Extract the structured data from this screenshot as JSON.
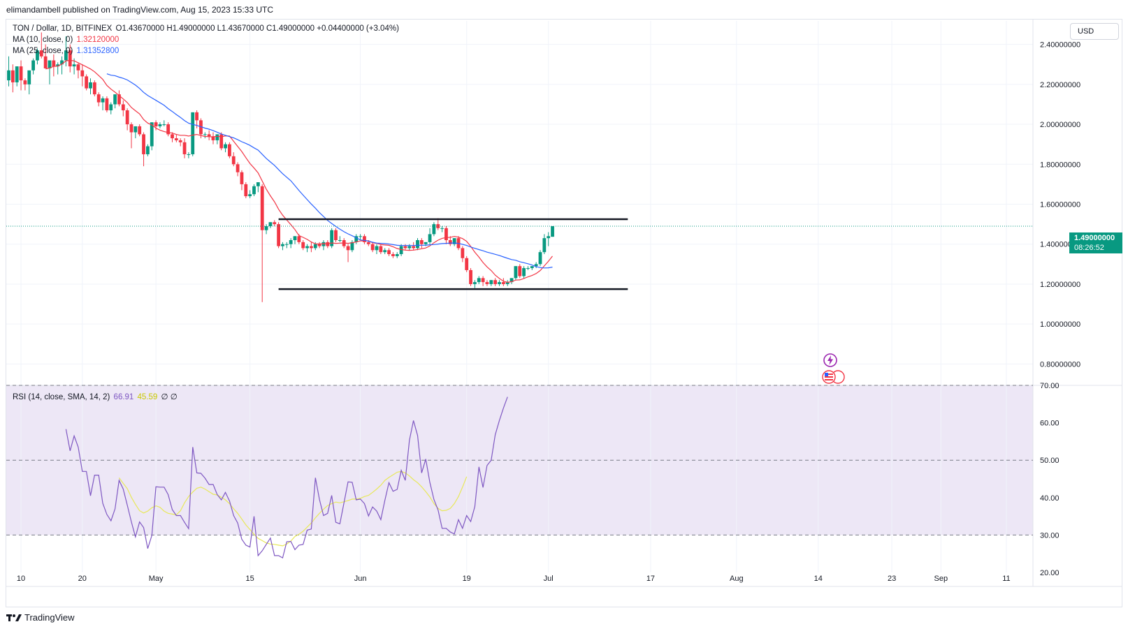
{
  "header": {
    "published": "elimandambell published on TradingView.com, Aug 15, 2023 15:33 UTC"
  },
  "legend": {
    "symbol": "TON / Dollar, 1D, BITFINEX",
    "ohlc": "O1.43670000  H1.49000000  L1.43670000  C1.49000000  +0.04400000 (+3.04%)",
    "ma10_label": "MA (10, close, 0)",
    "ma10_value": "1.32120000",
    "ma25_label": "MA (25, close, 0)",
    "ma25_value": "1.31352800",
    "rsi_label": "RSI (14, close, SMA, 14, 2)",
    "rsi_value": "66.91",
    "rsi_sma_value": "45.59",
    "rsi_extra": "∅  ∅"
  },
  "toolbar": {
    "currency": "USD"
  },
  "price_tag": {
    "price": "1.49000000",
    "countdown": "08:26:52"
  },
  "footer": {
    "brand": "TradingView"
  },
  "icons": [
    "tradingview-logo-icon",
    "lightning-icon",
    "us-flag-icon"
  ],
  "colors": {
    "up": "#089981",
    "down": "#f23645",
    "ma10": "#f23645",
    "ma25": "#2962ff",
    "rsi": "#7e57c2",
    "rsi_sma": "#e8e85a",
    "rsi_band": "#ede7f6"
  },
  "chart_data": [
    {
      "type": "candlestick",
      "symbol": "TON / Dollar",
      "timeframe": "1D",
      "ylim": [
        0.7,
        2.5
      ],
      "y_ticks": [
        "2.40000000",
        "2.20000000",
        "2.00000000",
        "1.80000000",
        "1.60000000",
        "1.40000000",
        "1.20000000",
        "1.00000000",
        "0.80000000"
      ],
      "x_ticks": [
        "10",
        "20",
        "May",
        "15",
        "Jun",
        "19",
        "Jul",
        "17",
        "Aug",
        "14",
        "23",
        "Sep",
        "11"
      ],
      "ohlc": [
        [
          2.22,
          2.34,
          2.19,
          2.27
        ],
        [
          2.27,
          2.3,
          2.16,
          2.21
        ],
        [
          2.21,
          2.29,
          2.19,
          2.29
        ],
        [
          2.29,
          2.32,
          2.17,
          2.22
        ],
        [
          2.22,
          2.23,
          2.17,
          2.2
        ],
        [
          2.2,
          2.26,
          2.15,
          2.27
        ],
        [
          2.27,
          2.33,
          2.25,
          2.32
        ],
        [
          2.32,
          2.38,
          2.3,
          2.37
        ],
        [
          2.37,
          2.46,
          2.33,
          2.34
        ],
        [
          2.34,
          2.4,
          2.29,
          2.28
        ],
        [
          2.28,
          2.31,
          2.2,
          2.32
        ],
        [
          2.32,
          2.35,
          2.24,
          2.29
        ],
        [
          2.29,
          2.31,
          2.25,
          2.3
        ],
        [
          2.3,
          2.34,
          2.25,
          2.32
        ],
        [
          2.32,
          2.44,
          2.29,
          2.37
        ],
        [
          2.37,
          2.4,
          2.26,
          2.29
        ],
        [
          2.29,
          2.33,
          2.25,
          2.3
        ],
        [
          2.3,
          2.31,
          2.23,
          2.27
        ],
        [
          2.27,
          2.3,
          2.19,
          2.24
        ],
        [
          2.24,
          2.25,
          2.17,
          2.18
        ],
        [
          2.18,
          2.23,
          2.15,
          2.21
        ],
        [
          2.21,
          2.22,
          2.14,
          2.15
        ],
        [
          2.15,
          2.16,
          2.09,
          2.11
        ],
        [
          2.11,
          2.14,
          2.07,
          2.13
        ],
        [
          2.13,
          2.14,
          2.06,
          2.07
        ],
        [
          2.07,
          2.11,
          2.05,
          2.1
        ],
        [
          2.1,
          2.15,
          2.08,
          2.15
        ],
        [
          2.15,
          2.17,
          2.09,
          2.1
        ],
        [
          2.1,
          2.12,
          2.04,
          2.07
        ],
        [
          2.07,
          2.08,
          1.97,
          2.0
        ],
        [
          2.0,
          2.01,
          1.88,
          1.96
        ],
        [
          1.96,
          1.99,
          1.93,
          1.99
        ],
        [
          1.99,
          2.0,
          1.94,
          1.95
        ],
        [
          1.95,
          1.96,
          1.79,
          1.85
        ],
        [
          1.85,
          1.9,
          1.84,
          1.89
        ],
        [
          1.89,
          2.01,
          1.87,
          2.01
        ],
        [
          2.01,
          2.02,
          1.97,
          1.99
        ],
        [
          1.99,
          2.01,
          1.98,
          2.0
        ],
        [
          2.0,
          2.02,
          1.99,
          2.0
        ],
        [
          2.0,
          2.01,
          1.94,
          1.95
        ],
        [
          1.95,
          1.96,
          1.91,
          1.93
        ],
        [
          1.93,
          1.95,
          1.91,
          1.92
        ],
        [
          1.92,
          1.93,
          1.89,
          1.91
        ],
        [
          1.91,
          1.93,
          1.83,
          1.85
        ],
        [
          1.85,
          1.86,
          1.83,
          1.85
        ],
        [
          1.85,
          2.06,
          1.84,
          2.06
        ],
        [
          2.06,
          2.07,
          1.98,
          2.02
        ],
        [
          2.02,
          2.03,
          1.93,
          1.95
        ],
        [
          1.95,
          1.96,
          1.93,
          1.95
        ],
        [
          1.95,
          1.97,
          1.92,
          1.94
        ],
        [
          1.94,
          1.96,
          1.9,
          1.92
        ],
        [
          1.92,
          1.95,
          1.9,
          1.95
        ],
        [
          1.95,
          1.96,
          1.87,
          1.88
        ],
        [
          1.88,
          1.91,
          1.86,
          1.9
        ],
        [
          1.9,
          1.91,
          1.83,
          1.84
        ],
        [
          1.84,
          1.86,
          1.79,
          1.8
        ],
        [
          1.8,
          1.81,
          1.74,
          1.76
        ],
        [
          1.76,
          1.77,
          1.67,
          1.7
        ],
        [
          1.7,
          1.71,
          1.63,
          1.64
        ],
        [
          1.64,
          1.67,
          1.63,
          1.65
        ],
        [
          1.65,
          1.7,
          1.64,
          1.69
        ],
        [
          1.69,
          1.71,
          1.66,
          1.71
        ],
        [
          1.69,
          1.7,
          1.11,
          1.47
        ],
        [
          1.47,
          1.5,
          1.45,
          1.49
        ],
        [
          1.49,
          1.51,
          1.48,
          1.51
        ],
        [
          1.51,
          1.52,
          1.49,
          1.5
        ],
        [
          1.5,
          1.51,
          1.38,
          1.39
        ],
        [
          1.39,
          1.41,
          1.37,
          1.4
        ],
        [
          1.4,
          1.41,
          1.38,
          1.4
        ],
        [
          1.4,
          1.43,
          1.38,
          1.42
        ],
        [
          1.42,
          1.44,
          1.4,
          1.44
        ],
        [
          1.44,
          1.45,
          1.4,
          1.41
        ],
        [
          1.41,
          1.42,
          1.37,
          1.38
        ],
        [
          1.38,
          1.4,
          1.36,
          1.39
        ],
        [
          1.39,
          1.41,
          1.36,
          1.38
        ],
        [
          1.38,
          1.41,
          1.37,
          1.4
        ],
        [
          1.4,
          1.41,
          1.38,
          1.39
        ],
        [
          1.39,
          1.42,
          1.37,
          1.41
        ],
        [
          1.41,
          1.42,
          1.38,
          1.39
        ],
        [
          1.39,
          1.48,
          1.38,
          1.47
        ],
        [
          1.47,
          1.48,
          1.41,
          1.42
        ],
        [
          1.42,
          1.44,
          1.41,
          1.42
        ],
        [
          1.42,
          1.43,
          1.38,
          1.39
        ],
        [
          1.39,
          1.4,
          1.31,
          1.37
        ],
        [
          1.37,
          1.42,
          1.36,
          1.41
        ],
        [
          1.41,
          1.45,
          1.4,
          1.44
        ],
        [
          1.44,
          1.45,
          1.42,
          1.44
        ],
        [
          1.44,
          1.45,
          1.4,
          1.41
        ],
        [
          1.41,
          1.42,
          1.39,
          1.4
        ],
        [
          1.4,
          1.41,
          1.36,
          1.37
        ],
        [
          1.37,
          1.4,
          1.35,
          1.39
        ],
        [
          1.39,
          1.4,
          1.35,
          1.36
        ],
        [
          1.36,
          1.38,
          1.35,
          1.37
        ],
        [
          1.37,
          1.38,
          1.34,
          1.35
        ],
        [
          1.35,
          1.36,
          1.33,
          1.34
        ],
        [
          1.34,
          1.36,
          1.33,
          1.35
        ],
        [
          1.35,
          1.4,
          1.34,
          1.39
        ],
        [
          1.39,
          1.4,
          1.37,
          1.38
        ],
        [
          1.38,
          1.4,
          1.37,
          1.39
        ],
        [
          1.39,
          1.41,
          1.37,
          1.38
        ],
        [
          1.38,
          1.43,
          1.37,
          1.42
        ],
        [
          1.42,
          1.43,
          1.38,
          1.4
        ],
        [
          1.4,
          1.41,
          1.39,
          1.41
        ],
        [
          1.41,
          1.48,
          1.4,
          1.45
        ],
        [
          1.45,
          1.51,
          1.44,
          1.5
        ],
        [
          1.5,
          1.53,
          1.47,
          1.48
        ],
        [
          1.48,
          1.49,
          1.46,
          1.48
        ],
        [
          1.48,
          1.49,
          1.4,
          1.42
        ],
        [
          1.42,
          1.44,
          1.39,
          1.4
        ],
        [
          1.4,
          1.43,
          1.39,
          1.43
        ],
        [
          1.43,
          1.44,
          1.37,
          1.38
        ],
        [
          1.38,
          1.39,
          1.31,
          1.33
        ],
        [
          1.33,
          1.34,
          1.26,
          1.27
        ],
        [
          1.27,
          1.28,
          1.19,
          1.2
        ],
        [
          1.2,
          1.22,
          1.18,
          1.21
        ],
        [
          1.21,
          1.24,
          1.2,
          1.23
        ],
        [
          1.23,
          1.24,
          1.19,
          1.21
        ],
        [
          1.21,
          1.22,
          1.19,
          1.2
        ],
        [
          1.2,
          1.22,
          1.19,
          1.22
        ],
        [
          1.22,
          1.23,
          1.19,
          1.2
        ],
        [
          1.2,
          1.22,
          1.19,
          1.21
        ],
        [
          1.21,
          1.23,
          1.19,
          1.2
        ],
        [
          1.2,
          1.22,
          1.19,
          1.21
        ],
        [
          1.21,
          1.23,
          1.2,
          1.23
        ],
        [
          1.23,
          1.29,
          1.22,
          1.29
        ],
        [
          1.29,
          1.3,
          1.23,
          1.24
        ],
        [
          1.24,
          1.29,
          1.23,
          1.28
        ],
        [
          1.28,
          1.29,
          1.27,
          1.28
        ],
        [
          1.28,
          1.29,
          1.27,
          1.29
        ],
        [
          1.29,
          1.31,
          1.28,
          1.3
        ],
        [
          1.3,
          1.37,
          1.29,
          1.36
        ],
        [
          1.36,
          1.45,
          1.35,
          1.43
        ],
        [
          1.43,
          1.46,
          1.39,
          1.44
        ],
        [
          1.437,
          1.49,
          1.437,
          1.49
        ]
      ],
      "ma10_overlay_start_index": 8,
      "ma25_overlay_start_index": 23,
      "channel": {
        "upper": 1.525,
        "lower": 1.175,
        "start_index": 66,
        "end_index": 148
      },
      "last_price_line": 1.49
    },
    {
      "type": "line",
      "name": "RSI (14, close, SMA, 14, 2)",
      "ylim": [
        20,
        70
      ],
      "y_ticks": [
        "70.00",
        "60.00",
        "50.00",
        "40.00",
        "30.00",
        "20.00"
      ],
      "bands": [
        30,
        70
      ],
      "midline": 50,
      "rsi_start_index": 14,
      "rsi_sma_start_index": 27,
      "rsi_values": [
        58.3,
        52.5,
        56.5,
        53.5,
        47.0,
        47.0,
        40.5,
        46.0,
        46.0,
        38.5,
        35.5,
        33.8,
        37.0,
        44.6,
        42.3,
        38.0,
        33.5,
        29.5,
        33.5,
        32.0,
        26.4,
        29.9,
        42.9,
        42.8,
        42.8,
        40.8,
        36.8,
        35.2,
        35.2,
        33.4,
        31.7,
        53.5,
        46.6,
        46.5,
        45.2,
        43.5,
        43.5,
        40.8,
        39.4,
        41.4,
        39.1,
        35.2,
        33.2,
        28.9,
        27.3,
        26.8,
        35.0,
        24.5,
        25.8,
        27.5,
        29.2,
        24.5,
        24.5,
        23.9,
        28.2,
        28.3,
        26.1,
        27.3,
        27.5,
        31.3,
        31.6,
        45.3,
        39.5,
        35.2,
        35.8,
        40.6,
        33.4,
        33.0,
        38.6,
        44.2,
        44.1,
        39.4,
        39.6,
        38.4,
        35.1,
        37.5,
        36.4,
        34.1,
        39.3,
        44.0,
        41.7,
        42.2,
        47.3,
        44.6,
        55.3,
        60.6,
        56.6,
        46.6,
        50.3,
        44.1,
        39.5,
        36.7,
        31.8,
        31.8,
        30.8,
        30.3,
        34.1,
        31.8,
        35.2,
        33.6,
        37.6,
        48.2,
        42.7,
        48.6,
        50.0,
        56.8,
        60.6,
        63.9,
        66.9
      ],
      "rsi_sma_values": [
        45.3,
        43.8,
        42.4,
        40.1,
        38.2,
        36.5,
        35.9,
        36.4,
        37.3,
        37.8,
        37.4,
        36.4,
        35.8,
        35.6,
        35.4,
        36.5,
        38.6,
        40.3,
        41.5,
        42.5,
        42.8,
        42.3,
        41.6,
        40.9,
        40.7,
        40.1,
        39.4,
        38.4,
        37.0,
        35.8,
        34.3,
        32.7,
        31.5,
        30.2,
        29.1,
        28.5,
        27.9,
        27.6,
        27.5,
        27.3,
        27.1,
        27.6,
        28.4,
        29.6,
        30.2,
        31.0,
        32.1,
        33.2,
        34.6,
        35.8,
        36.9,
        37.9,
        38.4,
        38.8,
        38.6,
        38.9,
        39.2,
        39.6,
        39.6,
        39.8,
        40.3,
        40.6,
        41.4,
        42.3,
        43.3,
        44.6,
        45.4,
        46.1,
        46.8,
        47.0,
        46.6,
        45.8,
        44.8,
        44.0,
        42.9,
        41.6,
        40.2,
        38.4,
        37.1,
        36.5,
        36.6,
        37.1,
        38.4,
        40.3,
        42.8,
        45.6
      ]
    }
  ]
}
